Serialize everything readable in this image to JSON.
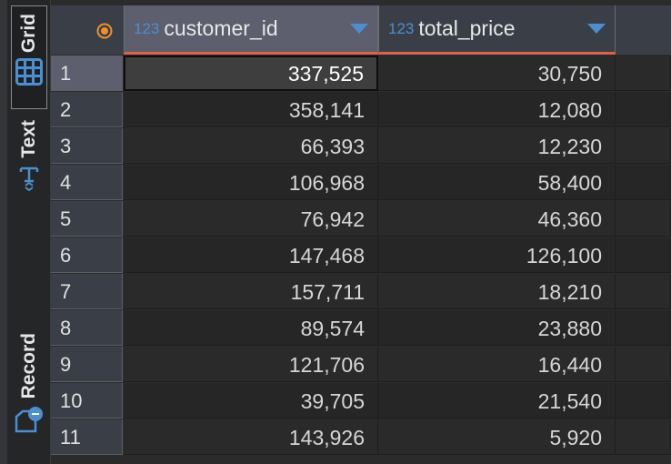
{
  "sidebar": {
    "grid_label": "Grid",
    "text_label": "Text",
    "record_label": "Record"
  },
  "columns": [
    {
      "type_label": "123",
      "name": "customer_id"
    },
    {
      "type_label": "123",
      "name": "total_price"
    }
  ],
  "colors": {
    "accent": "#4a90d0",
    "sort_underline": "#e0604a",
    "row_indicator": "#f0902a"
  },
  "rows": [
    {
      "n": "1",
      "customer_id": "337,525",
      "total_price": "30,750"
    },
    {
      "n": "2",
      "customer_id": "358,141",
      "total_price": "12,080"
    },
    {
      "n": "3",
      "customer_id": "66,393",
      "total_price": "12,230"
    },
    {
      "n": "4",
      "customer_id": "106,968",
      "total_price": "58,400"
    },
    {
      "n": "5",
      "customer_id": "76,942",
      "total_price": "46,360"
    },
    {
      "n": "6",
      "customer_id": "147,468",
      "total_price": "126,100"
    },
    {
      "n": "7",
      "customer_id": "157,711",
      "total_price": "18,210"
    },
    {
      "n": "8",
      "customer_id": "89,574",
      "total_price": "23,880"
    },
    {
      "n": "9",
      "customer_id": "121,706",
      "total_price": "16,440"
    },
    {
      "n": "10",
      "customer_id": "39,705",
      "total_price": "21,540"
    },
    {
      "n": "11",
      "customer_id": "143,926",
      "total_price": "5,920"
    }
  ]
}
